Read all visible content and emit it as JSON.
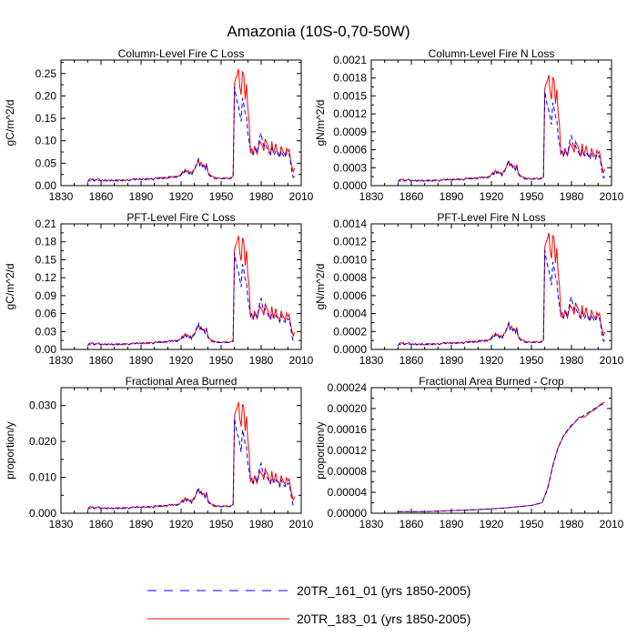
{
  "page_title": "Amazonia (10S-0,70-50W)",
  "legend": [
    {
      "label": "20TR_161_01 (yrs 1850-2005)",
      "color": "#0000ff",
      "dash": "dashed"
    },
    {
      "label": "20TR_183_01 (yrs 1850-2005)",
      "color": "#ff0000",
      "dash": "solid"
    }
  ],
  "chart_data": [
    {
      "type": "line",
      "title": "Column-Level Fire C Loss",
      "ylabel": "gC/m^2/d",
      "xlim": [
        1830,
        2010
      ],
      "ylim": [
        0,
        0.28
      ],
      "xticks": [
        1830,
        1860,
        1890,
        1920,
        1950,
        1980,
        2010
      ],
      "xtick_labels": [
        "1830",
        "1860",
        "1890",
        "1920",
        "1950",
        "1980",
        "2010"
      ],
      "yticks": [
        0,
        0.05,
        0.1,
        0.15,
        0.2,
        0.25
      ],
      "ytick_labels": [
        "0.00",
        "0.05",
        "0.10",
        "0.15",
        "0.20",
        "0.25"
      ],
      "scale": 0.26,
      "series": [
        {
          "name": "20TR_161_01 (yrs 1850-2005)",
          "color": "#0000ff",
          "dashed": true
        },
        {
          "name": "20TR_183_01 (yrs 1850-2005)",
          "color": "#ff0000",
          "dashed": false
        }
      ]
    },
    {
      "type": "line",
      "title": "Column-Level Fire N Loss",
      "ylabel": "gN/m^2/d",
      "xlim": [
        1830,
        2010
      ],
      "ylim": [
        0,
        0.0021
      ],
      "xticks": [
        1830,
        1860,
        1890,
        1920,
        1950,
        1980,
        2010
      ],
      "xtick_labels": [
        "1830",
        "1860",
        "1890",
        "1920",
        "1950",
        "1980",
        "2010"
      ],
      "yticks": [
        0,
        0.0003,
        0.0006,
        0.0009,
        0.0012,
        0.0015,
        0.0018,
        0.0021
      ],
      "ytick_labels": [
        "0.0000",
        "0.0003",
        "0.0006",
        "0.0009",
        "0.0012",
        "0.0015",
        "0.0018",
        "0.0021"
      ],
      "scale": 0.00185,
      "series": [
        {
          "name": "20TR_161_01 (yrs 1850-2005)",
          "color": "#0000ff",
          "dashed": true
        },
        {
          "name": "20TR_183_01 (yrs 1850-2005)",
          "color": "#ff0000",
          "dashed": false
        }
      ]
    },
    {
      "type": "line",
      "title": "PFT-Level Fire C Loss",
      "ylabel": "gC/m^2/d",
      "xlim": [
        1830,
        2010
      ],
      "ylim": [
        0,
        0.21
      ],
      "xticks": [
        1830,
        1860,
        1890,
        1920,
        1950,
        1980,
        2010
      ],
      "xtick_labels": [
        "1830",
        "1860",
        "1890",
        "1920",
        "1950",
        "1980",
        "2010"
      ],
      "yticks": [
        0,
        0.03,
        0.06,
        0.09,
        0.12,
        0.15,
        0.18,
        0.21
      ],
      "ytick_labels": [
        "0.00",
        "0.03",
        "0.06",
        "0.09",
        "0.12",
        "0.15",
        "0.18",
        "0.21"
      ],
      "scale": 0.19,
      "series": [
        {
          "name": "20TR_161_01 (yrs 1850-2005)",
          "color": "#0000ff",
          "dashed": true
        },
        {
          "name": "20TR_183_01 (yrs 1850-2005)",
          "color": "#ff0000",
          "dashed": false
        }
      ]
    },
    {
      "type": "line",
      "title": "PFT-Level Fire N Loss",
      "ylabel": "gN/m^2/d",
      "xlim": [
        1830,
        2010
      ],
      "ylim": [
        0,
        0.0014
      ],
      "xticks": [
        1830,
        1860,
        1890,
        1920,
        1950,
        1980,
        2010
      ],
      "xtick_labels": [
        "1830",
        "1860",
        "1890",
        "1920",
        "1950",
        "1980",
        "2010"
      ],
      "yticks": [
        0,
        0.0002,
        0.0004,
        0.0006,
        0.0008,
        0.001,
        0.0012,
        0.0014
      ],
      "ytick_labels": [
        "0.0000",
        "0.0002",
        "0.0004",
        "0.0006",
        "0.0008",
        "0.0010",
        "0.0012",
        "0.0014"
      ],
      "scale": 0.0013,
      "series": [
        {
          "name": "20TR_161_01 (yrs 1850-2005)",
          "color": "#0000ff",
          "dashed": true
        },
        {
          "name": "20TR_183_01 (yrs 1850-2005)",
          "color": "#ff0000",
          "dashed": false
        }
      ]
    },
    {
      "type": "line",
      "title": "Fractional Area Burned",
      "ylabel": "proportion/y",
      "xlim": [
        1830,
        2010
      ],
      "ylim": [
        0,
        0.035
      ],
      "xticks": [
        1830,
        1860,
        1890,
        1920,
        1950,
        1980,
        2010
      ],
      "xtick_labels": [
        "1830",
        "1860",
        "1890",
        "1920",
        "1950",
        "1980",
        "2010"
      ],
      "yticks": [
        0,
        0.01,
        0.02,
        0.03
      ],
      "ytick_labels": [
        "0.000",
        "0.010",
        "0.020",
        "0.030"
      ],
      "scale": 0.031,
      "series": [
        {
          "name": "20TR_161_01 (yrs 1850-2005)",
          "color": "#0000ff",
          "dashed": true
        },
        {
          "name": "20TR_183_01 (yrs 1850-2005)",
          "color": "#ff0000",
          "dashed": false
        }
      ]
    },
    {
      "type": "line",
      "title": "Fractional Area Burned - Crop",
      "ylabel": "proportion/y",
      "xlim": [
        1830,
        2010
      ],
      "ylim": [
        0,
        0.00024
      ],
      "xticks": [
        1830,
        1860,
        1890,
        1920,
        1950,
        1980,
        2010
      ],
      "xtick_labels": [
        "1830",
        "1860",
        "1890",
        "1920",
        "1950",
        "1980",
        "2010"
      ],
      "yticks": [
        0,
        4e-05,
        8e-05,
        0.00012,
        0.00016,
        0.0002,
        0.00024
      ],
      "ytick_labels": [
        "0.00000",
        "0.00004",
        "0.00008",
        "0.00012",
        "0.00016",
        "0.00020",
        "0.00024"
      ],
      "crop": true,
      "series": [
        {
          "name": "20TR_161_01 (yrs 1850-2005)",
          "color": "#0000ff",
          "dashed": true,
          "x": [
            1850,
            1870,
            1890,
            1910,
            1930,
            1950,
            1958,
            1962,
            1966,
            1970,
            1974,
            1978,
            1982,
            1986,
            1990,
            1994,
            1998,
            2002,
            2005
          ],
          "y": [
            3e-06,
            3e-06,
            5e-06,
            7e-06,
            1e-05,
            1.5e-05,
            2e-05,
            4.5e-05,
            9e-05,
            0.000125,
            0.000148,
            0.000163,
            0.000173,
            0.000182,
            0.000188,
            0.000195,
            0.000201,
            0.000207,
            0.00021
          ]
        },
        {
          "name": "20TR_183_01 (yrs 1850-2005)",
          "color": "#ff0000",
          "dashed": false,
          "x": [
            1850,
            1870,
            1890,
            1910,
            1930,
            1950,
            1958,
            1962,
            1966,
            1970,
            1974,
            1978,
            1982,
            1986,
            1990,
            1994,
            1998,
            2002,
            2005
          ],
          "y": [
            3e-06,
            3e-06,
            5e-06,
            7e-06,
            1e-05,
            1.5e-05,
            2e-05,
            4.7e-05,
            9.2e-05,
            0.000126,
            0.000147,
            0.000161,
            0.000172,
            0.000184,
            0.000184,
            0.000193,
            0.000199,
            0.000209,
            0.000212
          ]
        }
      ]
    }
  ],
  "fire_anomaly_shape": {
    "years": [
      1850,
      1851,
      1852,
      1853,
      1854,
      1855,
      1856,
      1857,
      1858,
      1859,
      1860,
      1861,
      1862,
      1863,
      1864,
      1865,
      1866,
      1867,
      1868,
      1869,
      1870,
      1871,
      1872,
      1873,
      1874,
      1875,
      1876,
      1877,
      1878,
      1879,
      1880,
      1881,
      1882,
      1883,
      1884,
      1885,
      1886,
      1887,
      1888,
      1889,
      1890,
      1891,
      1892,
      1893,
      1894,
      1895,
      1896,
      1897,
      1898,
      1899,
      1900,
      1901,
      1902,
      1903,
      1904,
      1905,
      1906,
      1907,
      1908,
      1909,
      1910,
      1911,
      1912,
      1913,
      1914,
      1915,
      1916,
      1917,
      1918,
      1919,
      1920,
      1921,
      1922,
      1923,
      1924,
      1925,
      1926,
      1927,
      1928,
      1929,
      1930,
      1931,
      1932,
      1933,
      1934,
      1935,
      1936,
      1937,
      1938,
      1939,
      1940,
      1941,
      1942,
      1943,
      1944,
      1945,
      1946,
      1947,
      1948,
      1949,
      1950,
      1951,
      1952,
      1953,
      1954,
      1955,
      1956,
      1957,
      1958,
      1959,
      1960,
      1961,
      1962,
      1963,
      1964,
      1965,
      1966,
      1967,
      1968,
      1969,
      1970,
      1971,
      1972,
      1973,
      1974,
      1975,
      1976,
      1977,
      1978,
      1979,
      1980,
      1981,
      1982,
      1983,
      1984,
      1985,
      1986,
      1987,
      1988,
      1989,
      1990,
      1991,
      1992,
      1993,
      1994,
      1995,
      1996,
      1997,
      1998,
      1999,
      2000,
      2001,
      2002,
      2003,
      2004,
      2005
    ],
    "red": [
      0.03,
      0.05,
      0.06,
      0.05,
      0.06,
      0.04,
      0.05,
      0.05,
      0.06,
      0.05,
      0.04,
      0.05,
      0.04,
      0.05,
      0.04,
      0.04,
      0.05,
      0.04,
      0.05,
      0.04,
      0.04,
      0.05,
      0.04,
      0.05,
      0.05,
      0.04,
      0.05,
      0.05,
      0.04,
      0.05,
      0.05,
      0.04,
      0.05,
      0.05,
      0.06,
      0.05,
      0.05,
      0.06,
      0.05,
      0.06,
      0.05,
      0.06,
      0.06,
      0.05,
      0.06,
      0.06,
      0.05,
      0.06,
      0.06,
      0.05,
      0.06,
      0.07,
      0.06,
      0.07,
      0.06,
      0.07,
      0.06,
      0.07,
      0.07,
      0.06,
      0.07,
      0.08,
      0.07,
      0.08,
      0.07,
      0.08,
      0.07,
      0.08,
      0.08,
      0.09,
      0.1,
      0.12,
      0.11,
      0.14,
      0.12,
      0.13,
      0.11,
      0.12,
      0.1,
      0.13,
      0.14,
      0.16,
      0.19,
      0.22,
      0.18,
      0.2,
      0.17,
      0.18,
      0.15,
      0.19,
      0.12,
      0.1,
      0.09,
      0.08,
      0.08,
      0.07,
      0.07,
      0.06,
      0.07,
      0.06,
      0.06,
      0.06,
      0.07,
      0.06,
      0.07,
      0.06,
      0.06,
      0.07,
      0.07,
      0.08,
      0.88,
      0.92,
      0.95,
      1.0,
      0.85,
      0.78,
      0.98,
      0.95,
      0.74,
      0.87,
      0.66,
      0.55,
      0.28,
      0.32,
      0.26,
      0.34,
      0.3,
      0.27,
      0.33,
      0.38,
      0.36,
      0.34,
      0.3,
      0.4,
      0.37,
      0.35,
      0.3,
      0.26,
      0.38,
      0.28,
      0.31,
      0.36,
      0.29,
      0.28,
      0.25,
      0.34,
      0.3,
      0.28,
      0.26,
      0.32,
      0.29,
      0.31,
      0.22,
      0.17,
      0.12,
      0.15
    ],
    "blue": [
      0.03,
      0.05,
      0.04,
      0.05,
      0.05,
      0.04,
      0.05,
      0.04,
      0.04,
      0.05,
      0.04,
      0.05,
      0.04,
      0.05,
      0.04,
      0.05,
      0.04,
      0.04,
      0.05,
      0.04,
      0.05,
      0.04,
      0.05,
      0.04,
      0.05,
      0.05,
      0.04,
      0.05,
      0.05,
      0.05,
      0.05,
      0.04,
      0.05,
      0.05,
      0.05,
      0.06,
      0.05,
      0.06,
      0.05,
      0.06,
      0.05,
      0.05,
      0.06,
      0.06,
      0.05,
      0.06,
      0.06,
      0.05,
      0.06,
      0.05,
      0.06,
      0.07,
      0.06,
      0.06,
      0.07,
      0.06,
      0.07,
      0.06,
      0.07,
      0.07,
      0.06,
      0.07,
      0.07,
      0.08,
      0.07,
      0.07,
      0.08,
      0.07,
      0.08,
      0.08,
      0.09,
      0.11,
      0.1,
      0.13,
      0.11,
      0.12,
      0.1,
      0.11,
      0.09,
      0.12,
      0.13,
      0.17,
      0.2,
      0.23,
      0.17,
      0.19,
      0.16,
      0.17,
      0.14,
      0.18,
      0.11,
      0.09,
      0.08,
      0.07,
      0.07,
      0.06,
      0.06,
      0.06,
      0.06,
      0.06,
      0.06,
      0.06,
      0.06,
      0.06,
      0.06,
      0.06,
      0.06,
      0.06,
      0.07,
      0.07,
      0.85,
      0.78,
      0.72,
      0.68,
      0.62,
      0.55,
      0.75,
      0.7,
      0.62,
      0.6,
      0.45,
      0.38,
      0.3,
      0.28,
      0.27,
      0.3,
      0.32,
      0.28,
      0.35,
      0.42,
      0.45,
      0.38,
      0.34,
      0.36,
      0.33,
      0.31,
      0.28,
      0.27,
      0.32,
      0.3,
      0.27,
      0.3,
      0.28,
      0.26,
      0.24,
      0.3,
      0.27,
      0.25,
      0.24,
      0.28,
      0.26,
      0.27,
      0.2,
      0.12,
      0.07,
      0.08
    ]
  }
}
